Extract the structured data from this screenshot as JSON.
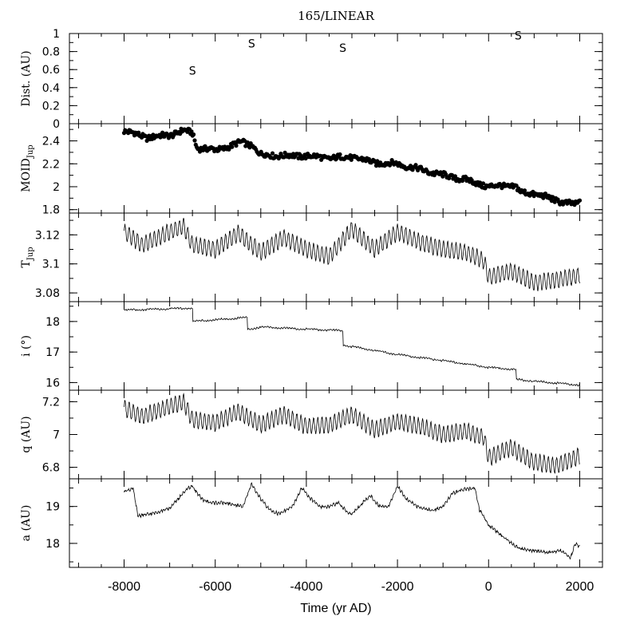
{
  "chart_data": {
    "type": "line",
    "title": "165/LINEAR",
    "xlabel": "Time (yr AD)",
    "xlim": [
      -9200,
      2500
    ],
    "x_ticks": [
      "-8000",
      "-6000",
      "-4000",
      "-2000",
      "0",
      "2000"
    ],
    "panels": [
      {
        "id": "dist",
        "type": "scatter",
        "ylabel": "Dist. (AU)",
        "ylim": [
          0,
          1
        ],
        "y_ticks": [
          "0",
          "0.2",
          "0.4",
          "0.6",
          "0.8",
          "1"
        ],
        "marker": "S",
        "points": [
          {
            "x": -6500,
            "y": 0.59,
            "label": "S"
          },
          {
            "x": -5200,
            "y": 0.89,
            "label": "S"
          },
          {
            "x": -3200,
            "y": 0.84,
            "label": "S"
          },
          {
            "x": 650,
            "y": 0.98,
            "label": "S"
          }
        ]
      },
      {
        "id": "moid",
        "type": "scatter",
        "ylabel": "MOID",
        "ylabel_sub": "Jup",
        "ylim": [
          1.77,
          2.55
        ],
        "y_ticks": [
          "1.8",
          "2",
          "2.2",
          "2.4"
        ],
        "trend": {
          "x": [
            -8000,
            -7500,
            -7000,
            -6700,
            -6500,
            -6400,
            -6000,
            -5700,
            -5400,
            -5200,
            -5000,
            -4500,
            -4000,
            -3500,
            -3000,
            -2500,
            -2000,
            -1500,
            -1000,
            -500,
            0,
            300,
            600,
            700,
            1000,
            1500,
            1900,
            2000
          ],
          "y": [
            2.49,
            2.43,
            2.45,
            2.49,
            2.47,
            2.34,
            2.32,
            2.35,
            2.39,
            2.36,
            2.28,
            2.27,
            2.27,
            2.25,
            2.26,
            2.21,
            2.2,
            2.15,
            2.1,
            2.06,
            2.0,
            2.01,
            2.0,
            1.95,
            1.94,
            1.88,
            1.84,
            1.87
          ]
        }
      },
      {
        "id": "tjup",
        "type": "line",
        "ylabel": "T",
        "ylabel_sub": "Jup",
        "ylim": [
          3.074,
          3.135
        ],
        "y_ticks": [
          "3.08",
          "3.1",
          "3.12"
        ],
        "trend": {
          "x": [
            -8000,
            -7600,
            -7000,
            -6700,
            -6500,
            -6000,
            -5500,
            -5000,
            -4500,
            -4000,
            -3500,
            -3000,
            -2500,
            -2000,
            -1500,
            -1000,
            -500,
            -100,
            0,
            500,
            1000,
            1500,
            2000
          ],
          "y": [
            3.122,
            3.113,
            3.122,
            3.126,
            3.113,
            3.11,
            3.121,
            3.108,
            3.118,
            3.11,
            3.105,
            3.124,
            3.11,
            3.122,
            3.115,
            3.11,
            3.108,
            3.102,
            3.091,
            3.095,
            3.087,
            3.089,
            3.092
          ]
        }
      },
      {
        "id": "incl",
        "type": "line",
        "ylabel": "i (°)",
        "ylim": [
          15.75,
          18.65
        ],
        "y_ticks": [
          "16",
          "17",
          "18"
        ],
        "trend": {
          "x": [
            -8000,
            -6500,
            -6500,
            -5300,
            -5300,
            -5000,
            -4000,
            -3200,
            -3200,
            -2000,
            -1000,
            0,
            600,
            600,
            1500,
            2000
          ],
          "y": [
            18.37,
            18.44,
            18.0,
            18.13,
            17.73,
            17.82,
            17.75,
            17.7,
            17.23,
            16.92,
            16.72,
            16.5,
            16.42,
            16.1,
            15.98,
            15.92
          ]
        }
      },
      {
        "id": "q",
        "type": "line",
        "ylabel": "q (AU)",
        "ylim": [
          6.73,
          7.27
        ],
        "y_ticks": [
          "6.8",
          "7",
          "7.2"
        ],
        "trend": {
          "x": [
            -8000,
            -7600,
            -7000,
            -6700,
            -6500,
            -6000,
            -5500,
            -5000,
            -4500,
            -4000,
            -3500,
            -3000,
            -2500,
            -2000,
            -1500,
            -1000,
            -500,
            -100,
            0,
            500,
            1000,
            1500,
            2000
          ],
          "y": [
            7.16,
            7.11,
            7.17,
            7.2,
            7.09,
            7.07,
            7.14,
            7.06,
            7.12,
            7.05,
            7.06,
            7.12,
            7.03,
            7.08,
            7.05,
            7.0,
            7.02,
            6.98,
            6.86,
            6.92,
            6.83,
            6.81,
            6.87
          ]
        }
      },
      {
        "id": "a",
        "type": "line",
        "ylabel": "a (AU)",
        "ylim": [
          17.35,
          19.75
        ],
        "y_ticks": [
          "18",
          "19"
        ],
        "trend": {
          "x": [
            -8000,
            -7800,
            -7700,
            -7400,
            -7000,
            -6600,
            -6500,
            -6300,
            -6100,
            -5800,
            -5400,
            -5200,
            -5000,
            -4800,
            -4600,
            -4300,
            -4100,
            -3900,
            -3700,
            -3500,
            -3300,
            -3100,
            -3000,
            -2800,
            -2600,
            -2400,
            -2200,
            -2000,
            -1800,
            -1500,
            -1200,
            -1000,
            -800,
            -600,
            -300,
            -200,
            0,
            300,
            500,
            700,
            1000,
            1300,
            1600,
            1800,
            1900,
            2000
          ],
          "y": [
            19.42,
            19.48,
            18.75,
            18.8,
            18.95,
            19.5,
            19.55,
            19.2,
            19.1,
            19.1,
            19.0,
            19.6,
            19.2,
            18.9,
            18.8,
            19.0,
            19.5,
            19.2,
            19.0,
            19.0,
            19.1,
            18.85,
            18.8,
            19.05,
            19.3,
            19.0,
            19.0,
            19.55,
            19.2,
            18.95,
            18.9,
            19.0,
            19.35,
            19.45,
            19.5,
            18.9,
            18.5,
            18.2,
            18.0,
            17.85,
            17.8,
            17.75,
            17.8,
            17.6,
            18.0,
            17.9
          ]
        }
      }
    ]
  }
}
